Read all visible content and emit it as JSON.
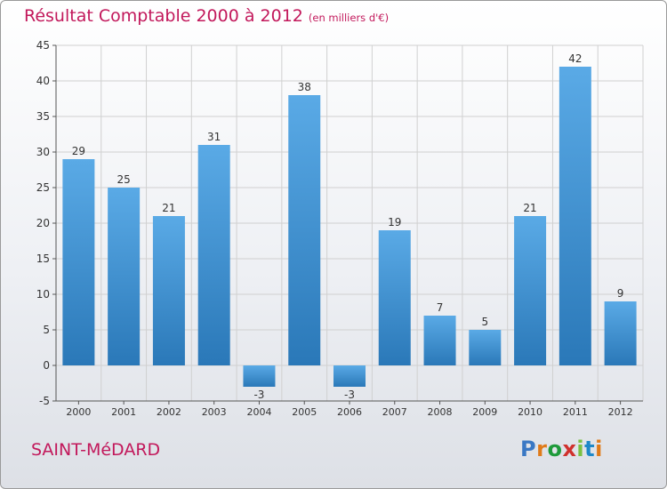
{
  "title": {
    "main": "Résultat Comptable 2000 à 2012",
    "unit": "(en milliers d'€)"
  },
  "commune": "SAINT-MéDARD",
  "brand": {
    "letters": [
      "P",
      "r",
      "o",
      "x",
      "i",
      "t",
      "i"
    ],
    "colors": [
      "#3a78c4",
      "#e07b1a",
      "#1e9a3a",
      "#d0312d",
      "#7ac142",
      "#1e88c8",
      "#e07b1a"
    ]
  },
  "colors": {
    "bar_top": "#5aaae6",
    "bar_bottom": "#2a78b8",
    "title": "#c2185b",
    "grid": "#d0d0d0",
    "axis": "#555555",
    "text": "#333333"
  },
  "chart_data": {
    "type": "bar",
    "categories": [
      "2000",
      "2001",
      "2002",
      "2003",
      "2004",
      "2005",
      "2006",
      "2007",
      "2008",
      "2009",
      "2010",
      "2011",
      "2012"
    ],
    "values": [
      29,
      25,
      21,
      31,
      -3,
      38,
      -3,
      19,
      7,
      5,
      21,
      42,
      9
    ],
    "title": "Résultat Comptable 2000 à 2012",
    "subtitle": "(en milliers d'€)",
    "ylim": [
      -5,
      45
    ],
    "yticks": [
      -5,
      0,
      5,
      10,
      15,
      20,
      25,
      30,
      35,
      40,
      45
    ],
    "grid": true,
    "data_labels": true
  }
}
